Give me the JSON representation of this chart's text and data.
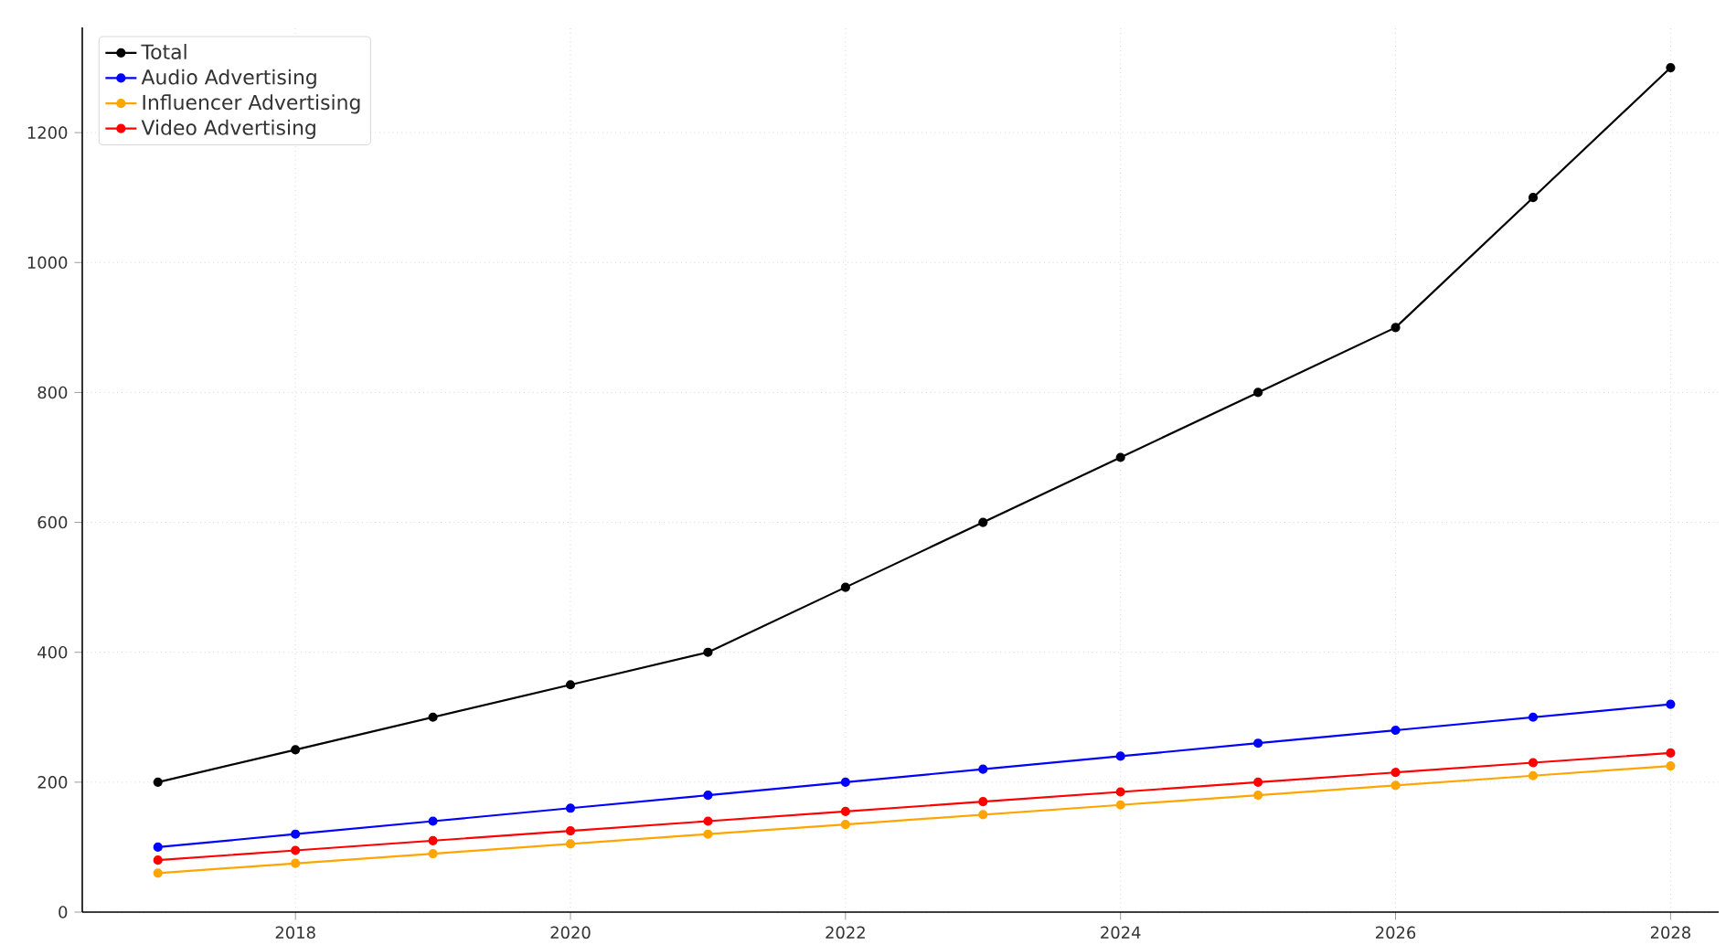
{
  "chart_data": {
    "type": "line",
    "x": [
      2017,
      2018,
      2019,
      2020,
      2021,
      2022,
      2023,
      2024,
      2025,
      2026,
      2027,
      2028
    ],
    "series": [
      {
        "name": "Total",
        "color": "#000000",
        "values": [
          200,
          250,
          300,
          350,
          400,
          500,
          600,
          700,
          800,
          900,
          1100,
          1300
        ]
      },
      {
        "name": "Audio Advertising",
        "color": "#0000ff",
        "values": [
          100,
          120,
          140,
          160,
          180,
          200,
          220,
          240,
          260,
          280,
          300,
          320
        ]
      },
      {
        "name": "Influencer Advertising",
        "color": "#ffa500",
        "values": [
          60,
          75,
          90,
          105,
          120,
          135,
          150,
          165,
          180,
          195,
          210,
          225
        ]
      },
      {
        "name": "Video Advertising",
        "color": "#ff0000",
        "values": [
          80,
          95,
          110,
          125,
          140,
          155,
          170,
          185,
          200,
          215,
          230,
          245
        ]
      }
    ],
    "xlim": [
      2016.45,
      2028.35
    ],
    "ylim": [
      0,
      1362
    ],
    "xticks": [
      2018,
      2020,
      2022,
      2024,
      2026,
      2028
    ],
    "yticks": [
      0,
      200,
      400,
      600,
      800,
      1000,
      1200
    ],
    "grid": true,
    "legend": "top left",
    "marker": "circle",
    "line_style": "solid"
  }
}
